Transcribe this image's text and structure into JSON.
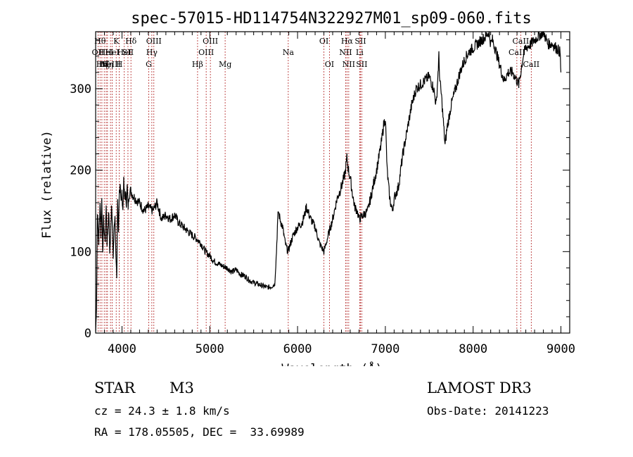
{
  "chart_data": {
    "type": "line",
    "title": "spec-57015-HD114754N322927M01_sp09-060.fits",
    "xlabel": "Wavelength (Å)",
    "ylabel": "Flux (relative)",
    "xlim": [
      3700,
      9100
    ],
    "ylim": [
      0,
      370
    ],
    "x_ticks": [
      4000,
      5000,
      6000,
      7000,
      8000,
      9000
    ],
    "y_ticks": [
      0,
      100,
      200,
      300
    ],
    "series": [
      {
        "x": [
          3700,
          3710,
          3720,
          3735,
          3750,
          3760,
          3770,
          3780,
          3790,
          3800,
          3810,
          3820,
          3830,
          3840,
          3850,
          3860,
          3870,
          3880,
          3890,
          3900,
          3910,
          3920,
          3930,
          3940,
          3950,
          3960,
          3970,
          3980,
          3990,
          4000,
          4010,
          4020,
          4030,
          4040,
          4050,
          4060,
          4070,
          4080,
          4100,
          4120,
          4150,
          4200,
          4250,
          4300,
          4350,
          4400,
          4450,
          4500,
          4550,
          4600,
          4650,
          4700,
          4750,
          4800,
          4860,
          4900,
          4950,
          5000,
          5050,
          5100,
          5150,
          5200,
          5250,
          5300,
          5350,
          5400,
          5450,
          5500,
          5550,
          5600,
          5650,
          5700,
          5740,
          5760,
          5770,
          5780,
          5800,
          5830,
          5860,
          5890,
          5920,
          5950,
          6000,
          6050,
          6080,
          6100,
          6150,
          6200,
          6250,
          6300,
          6350,
          6400,
          6450,
          6500,
          6540,
          6562,
          6580,
          6600,
          6620,
          6650,
          6680,
          6700,
          6750,
          6800,
          6850,
          6900,
          6950,
          6980,
          7000,
          7020,
          7050,
          7080,
          7100,
          7150,
          7200,
          7250,
          7300,
          7350,
          7400,
          7450,
          7500,
          7550,
          7580,
          7600,
          7610,
          7620,
          7640,
          7660,
          7680,
          7700,
          7750,
          7800,
          7850,
          7900,
          7950,
          8000,
          8050,
          8100,
          8150,
          8180,
          8200,
          8220,
          8250,
          8300,
          8350,
          8400,
          8450,
          8498,
          8520,
          8542,
          8570,
          8600,
          8662,
          8700,
          8750,
          8800,
          8850,
          8900,
          8950,
          8990,
          9000
        ],
        "y": [
          2,
          30,
          150,
          110,
          160,
          120,
          170,
          95,
          140,
          120,
          115,
          160,
          110,
          130,
          150,
          100,
          115,
          160,
          140,
          90,
          130,
          140,
          100,
          70,
          160,
          120,
          175,
          185,
          160,
          170,
          150,
          185,
          165,
          170,
          160,
          180,
          155,
          170,
          175,
          170,
          165,
          160,
          150,
          155,
          150,
          160,
          140,
          145,
          140,
          145,
          135,
          130,
          125,
          120,
          115,
          110,
          100,
          95,
          88,
          85,
          82,
          80,
          75,
          78,
          72,
          70,
          65,
          62,
          60,
          58,
          56,
          57,
          60,
          100,
          130,
          150,
          140,
          130,
          110,
          100,
          110,
          120,
          130,
          135,
          145,
          155,
          140,
          130,
          110,
          100,
          120,
          140,
          165,
          180,
          195,
          215,
          200,
          190,
          175,
          155,
          150,
          140,
          145,
          150,
          175,
          200,
          230,
          255,
          265,
          200,
          165,
          150,
          165,
          180,
          220,
          250,
          280,
          300,
          305,
          310,
          315,
          300,
          280,
          320,
          340,
          310,
          290,
          260,
          230,
          250,
          280,
          300,
          320,
          335,
          345,
          350,
          355,
          360,
          365,
          370,
          355,
          360,
          350,
          330,
          310,
          320,
          320,
          310,
          305,
          320,
          340,
          350,
          355,
          360,
          365,
          370,
          355,
          355,
          350,
          345,
          320
        ]
      }
    ],
    "lines": [
      {
        "x": 3727,
        "label": "OII",
        "row": 1
      },
      {
        "x": 3750,
        "label": "Hθ",
        "row": 0
      },
      {
        "x": 3771,
        "label": "Hη",
        "row": 2
      },
      {
        "x": 3798,
        "label": "Hζ",
        "row": 2
      },
      {
        "x": 3820,
        "label": "HeI",
        "row": 1
      },
      {
        "x": 3835,
        "label": "Hη",
        "row": 2
      },
      {
        "x": 3869,
        "label": "NeIII",
        "row": 2
      },
      {
        "x": 3889,
        "label": "HeI",
        "row": 1
      },
      {
        "x": 3934,
        "label": "K",
        "row": 0
      },
      {
        "x": 3969,
        "label": "H",
        "row": 2
      },
      {
        "x": 4026,
        "label": "HeI",
        "row": 1
      },
      {
        "x": 4068,
        "label": "SII",
        "row": 1
      },
      {
        "x": 4102,
        "label": "Hδ",
        "row": 0
      },
      {
        "x": 4305,
        "label": "G",
        "row": 2
      },
      {
        "x": 4340,
        "label": "Hγ",
        "row": 1
      },
      {
        "x": 4363,
        "label": "OIII",
        "row": 0
      },
      {
        "x": 4861,
        "label": "Hβ",
        "row": 2
      },
      {
        "x": 4959,
        "label": "OIII",
        "row": 1
      },
      {
        "x": 5007,
        "label": "OIII",
        "row": 0
      },
      {
        "x": 5175,
        "label": "Mg",
        "row": 2
      },
      {
        "x": 5894,
        "label": "Na",
        "row": 1
      },
      {
        "x": 6300,
        "label": "OI",
        "row": 0
      },
      {
        "x": 6363,
        "label": "OI",
        "row": 2
      },
      {
        "x": 6548,
        "label": "NII",
        "row": 1
      },
      {
        "x": 6563,
        "label": "Hα",
        "row": 0
      },
      {
        "x": 6583,
        "label": "NII",
        "row": 2
      },
      {
        "x": 6707,
        "label": "Li",
        "row": 1
      },
      {
        "x": 6716,
        "label": "SII",
        "row": 0
      },
      {
        "x": 6731,
        "label": "SII",
        "row": 2
      },
      {
        "x": 8498,
        "label": "CaII",
        "row": 1
      },
      {
        "x": 8542,
        "label": "CaII",
        "row": 0
      },
      {
        "x": 8662,
        "label": "CaII",
        "row": 2
      }
    ]
  },
  "info": {
    "class_label": "STAR",
    "subclass_label": "M3",
    "survey_label": "LAMOST DR3",
    "cz_text": "cz = 24.3 ± 1.8 km/s",
    "obs_date_text": "Obs-Date: 20141223",
    "radec_text": "RA = 178.05505, DEC =  33.69989"
  },
  "colors": {
    "spectrum": "#000000",
    "line_marker": "#b22222",
    "axes": "#000000"
  }
}
